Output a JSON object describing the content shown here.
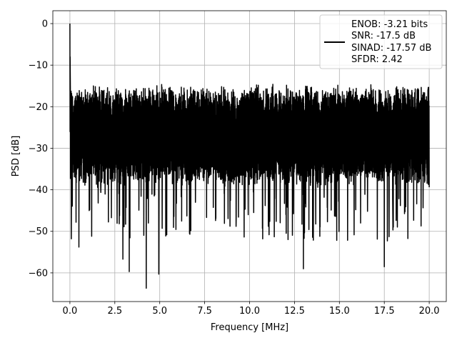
{
  "chart_data": {
    "type": "line",
    "xlabel": "Frequency [MHz]",
    "ylabel": "PSD [dB]",
    "xlim": [
      -0.95,
      20.95
    ],
    "ylim": [
      -66.9,
      3.1
    ],
    "xticks": [
      0.0,
      2.5,
      5.0,
      7.5,
      10.0,
      12.5,
      15.0,
      17.5,
      20.0
    ],
    "xtick_labels": [
      "0.0",
      "2.5",
      "5.0",
      "7.5",
      "10.0",
      "12.5",
      "15.0",
      "17.5",
      "20.0"
    ],
    "yticks": [
      0,
      -10,
      -20,
      -30,
      -40,
      -50,
      -60
    ],
    "ytick_labels": [
      "0",
      "−10",
      "−20",
      "−30",
      "−40",
      "−50",
      "−60"
    ],
    "grid": true,
    "legend_position": "top-right",
    "legend_text": [
      "ENOB: -3.21 bits",
      "SNR: -17.5 dB",
      "SINAD: -17.57 dB",
      "SFDR: 2.42"
    ],
    "series_color": "#000000",
    "x_range": [
      0.0,
      20.0
    ],
    "peak": {
      "x": 0.0,
      "y": 0.0
    },
    "noise_band": {
      "upper_typical": -17.5,
      "lower_typical": -36.5,
      "center": -27
    },
    "notable_dips": [
      {
        "x": 0.08,
        "y": -51.8
      },
      {
        "x": 0.5,
        "y": -53.8
      },
      {
        "x": 2.95,
        "y": -56.7
      },
      {
        "x": 3.3,
        "y": -59.7
      },
      {
        "x": 4.25,
        "y": -63.7
      },
      {
        "x": 4.95,
        "y": -60.3
      },
      {
        "x": 13.0,
        "y": -59.0
      },
      {
        "x": 17.5,
        "y": -58.5
      }
    ]
  }
}
